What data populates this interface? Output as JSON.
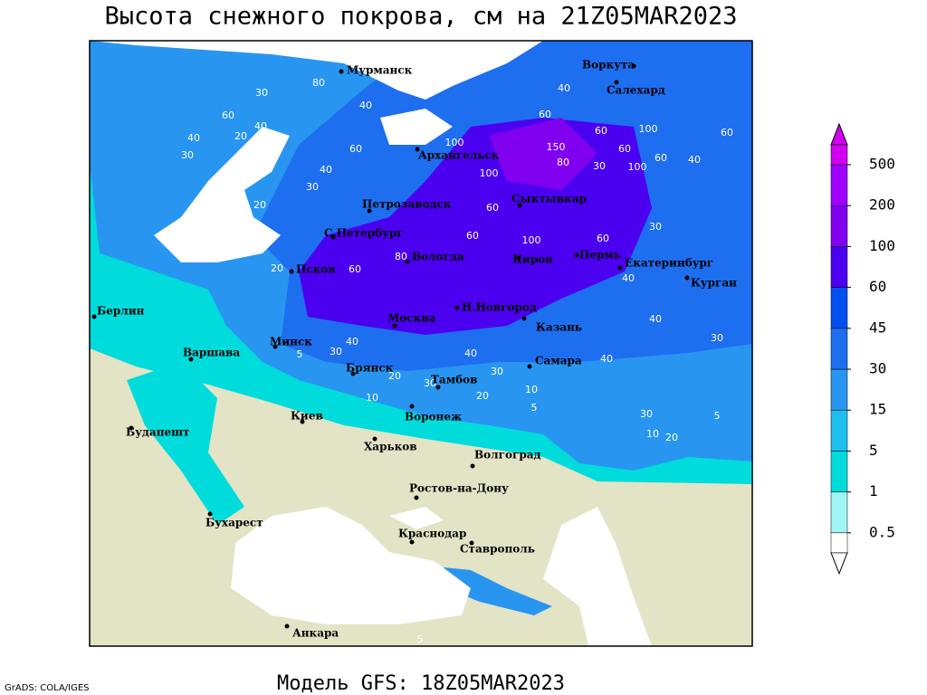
{
  "header": {
    "title": "Высота снежного покрова, см на 21Z05MAR2023"
  },
  "map": {
    "cities": [
      "Мурманск",
      "Воркута",
      "Салехард",
      "Архангельск",
      "Сыктывкар",
      "Петрозаводск",
      "С.Петербург",
      "Вологда",
      "Киров",
      "Пермь",
      "Екатеринбург",
      "Курган",
      "Псков",
      "Н.Новгород",
      "Москва",
      "Казань",
      "Берлин",
      "Варшава",
      "Минск",
      "Брянск",
      "Самара",
      "Тамбов",
      "Киев",
      "Воронеж",
      "Будапешт",
      "Харьков",
      "Волгоград",
      "Ростов-на-Дону",
      "Бухарест",
      "Краснодар",
      "Ставрополь",
      "Анкара"
    ],
    "contour_labels": [
      30,
      60,
      40,
      20,
      40,
      30,
      80,
      40,
      60,
      40,
      30,
      20,
      60,
      40,
      100,
      150,
      100,
      80,
      30,
      100,
      60,
      60,
      100,
      60,
      40,
      60,
      30,
      60,
      40,
      40,
      30,
      60,
      60,
      100,
      80,
      60,
      20,
      40,
      30,
      5,
      40,
      30,
      10,
      20,
      10,
      20,
      30,
      5,
      30,
      10,
      20,
      5,
      40,
      5
    ]
  },
  "legend": {
    "levels": [
      0.5,
      1,
      5,
      15,
      30,
      45,
      60,
      100,
      200,
      500
    ],
    "colors": [
      "#ffffff",
      "#a0f5f5",
      "#00dcdc",
      "#1ebef0",
      "#2896f0",
      "#1e6ef0",
      "#0050f0",
      "#4b00f0",
      "#8200f0",
      "#a000ff",
      "#d200f0"
    ]
  },
  "footer": {
    "model": "Модель GFS: 18Z05MAR2023",
    "credit": "GrADS: COLA/IGES"
  }
}
